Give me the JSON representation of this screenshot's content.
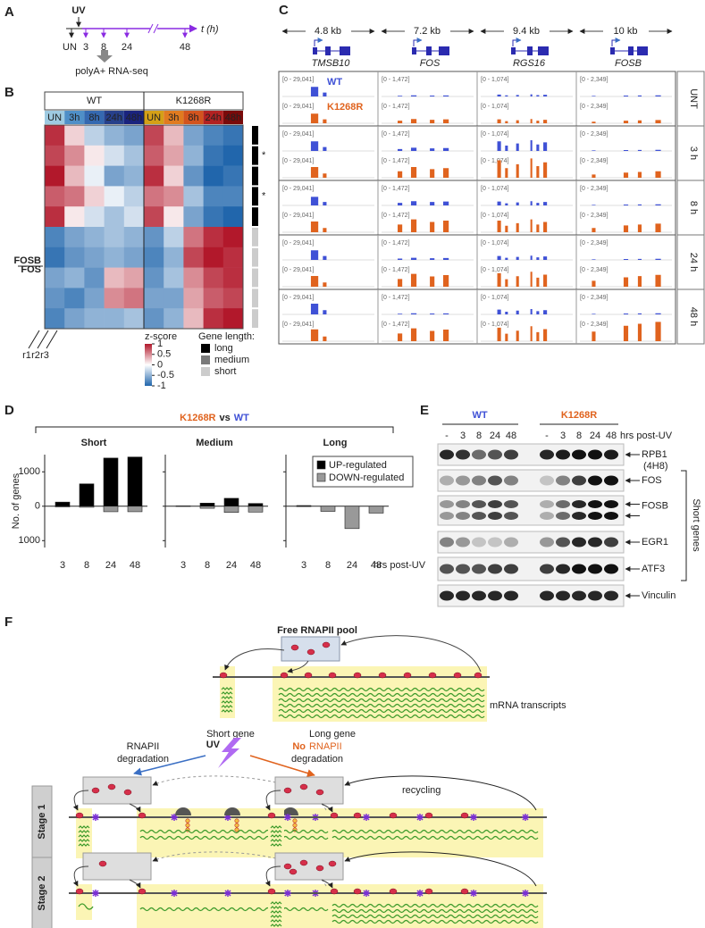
{
  "panel_labels": [
    "A",
    "B",
    "C",
    "D",
    "E",
    "F"
  ],
  "panel_a": {
    "uv": "UV",
    "untreated": "UN",
    "timepoints": [
      "3",
      "8",
      "24",
      "48"
    ],
    "axis": "t (h)",
    "assay": "polyA+ RNA-seq"
  },
  "panel_b": {
    "genotypes": [
      "WT",
      "K1268R"
    ],
    "conditions": [
      "UN",
      "3h",
      "8h",
      "24h",
      "48h"
    ],
    "heatmap": [
      [
        0.9,
        0.2,
        -0.3,
        -0.5,
        -0.6,
        0.8,
        0.3,
        -0.6,
        -0.8,
        -0.9
      ],
      [
        0.8,
        0.5,
        0.1,
        -0.2,
        -0.4,
        0.7,
        0.4,
        -0.5,
        -0.9,
        -1
      ],
      [
        1,
        0.3,
        -0.1,
        -0.6,
        -0.5,
        0.9,
        0.2,
        -0.7,
        -1,
        -0.9
      ],
      [
        0.7,
        0.6,
        0.2,
        -0.1,
        -0.3,
        0.6,
        0.5,
        -0.4,
        -0.8,
        -0.8
      ],
      [
        0.9,
        0.1,
        -0.2,
        -0.4,
        -0.2,
        0.8,
        0.1,
        -0.6,
        -0.9,
        -1
      ],
      [
        -0.8,
        -0.6,
        -0.5,
        -0.4,
        -0.5,
        -0.7,
        -0.3,
        0.6,
        0.9,
        1
      ],
      [
        -0.9,
        -0.7,
        -0.6,
        -0.5,
        -0.6,
        -0.8,
        -0.5,
        0.8,
        1,
        0.9
      ],
      [
        -0.6,
        -0.5,
        -0.7,
        0.3,
        0.4,
        -0.7,
        -0.4,
        0.5,
        0.8,
        0.9
      ],
      [
        -0.7,
        -0.8,
        -0.6,
        0.5,
        0.6,
        -0.6,
        -0.6,
        0.4,
        0.7,
        0.8
      ],
      [
        -0.8,
        -0.6,
        -0.5,
        -0.5,
        -0.4,
        -0.7,
        -0.5,
        0.3,
        0.9,
        1
      ]
    ],
    "gene_labels": [
      "FOSB",
      "FOS"
    ],
    "replicates": [
      "r1",
      "r2",
      "r3"
    ],
    "colorbar": {
      "title": "z-score",
      "lim": [
        -1,
        1
      ],
      "ticks": [
        1,
        0.5,
        0,
        -0.5,
        -1
      ]
    },
    "gene_length": {
      "title": "Gene length:",
      "classes": [
        "long",
        "medium",
        "short"
      ],
      "colors": [
        "#000000",
        "#7a7a7a",
        "#cccccc"
      ],
      "rows": [
        0,
        0,
        0,
        0,
        0,
        2,
        2,
        2,
        2,
        2
      ],
      "asterisk": "*"
    }
  },
  "panel_c": {
    "sizes": [
      "4.8 kb",
      "7.2 kb",
      "9.4 kb",
      "10 kb"
    ],
    "genes": [
      "TMSB10",
      "FOS",
      "RGS16",
      "FOSB"
    ],
    "ranges": [
      "[0 - 29,041]",
      "[0 - 1,472]",
      "[0 - 1,074]",
      "[0 - 2,349]"
    ],
    "timepoints": [
      "UNT",
      "3 h",
      "8 h",
      "24 h",
      "48 h"
    ],
    "signal": [
      [
        [
          0.45,
          0.45
        ],
        [
          0.05,
          0.2
        ],
        [
          0.1,
          0.2
        ],
        [
          0.05,
          0.15
        ]
      ],
      [
        [
          0.45,
          0.5
        ],
        [
          0.15,
          0.5
        ],
        [
          0.5,
          0.9
        ],
        [
          0.05,
          0.3
        ]
      ],
      [
        [
          0.4,
          0.5
        ],
        [
          0.2,
          0.6
        ],
        [
          0.2,
          0.6
        ],
        [
          0.05,
          0.4
        ]
      ],
      [
        [
          0.45,
          0.5
        ],
        [
          0.1,
          0.6
        ],
        [
          0.2,
          0.7
        ],
        [
          0.05,
          0.55
        ]
      ],
      [
        [
          0.5,
          0.55
        ],
        [
          0.05,
          0.6
        ],
        [
          0.25,
          0.7
        ],
        [
          0.05,
          0.9
        ]
      ]
    ]
  },
  "chart_data": {
    "type": "bar",
    "title": [
      "K1268R",
      "vs",
      "WT"
    ],
    "facets": [
      "Short",
      "Medium",
      "Long"
    ],
    "categories": [
      "3",
      "8",
      "24",
      "48"
    ],
    "x_label": "hrs post-UV",
    "y_label": "No. of genes",
    "ylim": [
      -1200,
      1500
    ],
    "yticks": [
      {
        "value": 1000,
        "label": "1000"
      },
      0,
      {
        "value": -1000,
        "label": "1000"
      }
    ],
    "legend": "upper right",
    "series": [
      {
        "name": "UP-regulated",
        "color": "#000000",
        "values": [
          [
            120,
            650,
            1400,
            1430
          ],
          [
            10,
            90,
            230,
            80
          ],
          [
            20,
            0,
            0,
            0
          ]
        ]
      },
      {
        "name": "DOWN-regulated",
        "color": "#999999",
        "values": [
          [
            -20,
            -30,
            -160,
            -160
          ],
          [
            -5,
            -60,
            -180,
            -170
          ],
          [
            -10,
            -150,
            -650,
            -200
          ]
        ]
      }
    ]
  },
  "panel_e": {
    "lanes": [
      "-",
      "3",
      "8",
      "24",
      "48"
    ],
    "proteins": [
      {
        "name": "RPB1",
        "note": "(4H8)",
        "intensity": [
          0.9,
          0.85,
          0.6,
          0.7,
          0.8,
          0.9,
          0.95,
          1,
          1,
          0.95
        ]
      },
      {
        "name": "FOS",
        "intensity": [
          0.3,
          0.4,
          0.5,
          0.7,
          0.5,
          0.2,
          0.5,
          0.8,
          1,
          1
        ]
      },
      {
        "name": "FOSB",
        "intensity": [
          0.4,
          0.5,
          0.7,
          0.8,
          0.7,
          0.3,
          0.6,
          0.9,
          1,
          1
        ]
      },
      {
        "name": "EGR1",
        "intensity": [
          0.5,
          0.4,
          0.2,
          0.2,
          0.3,
          0.4,
          0.7,
          0.9,
          0.9,
          0.8
        ]
      },
      {
        "name": "ATF3",
        "intensity": [
          0.7,
          0.7,
          0.7,
          0.8,
          0.8,
          0.8,
          0.9,
          1,
          1,
          1
        ]
      },
      {
        "name": "Vinculin",
        "intensity": [
          0.9,
          0.9,
          0.9,
          0.9,
          0.9,
          0.9,
          0.9,
          0.9,
          0.9,
          0.9
        ]
      }
    ],
    "group": "Short genes"
  },
  "panel_f": {
    "pool": "Free RNAPII pool",
    "transcripts": "mRNA transcripts",
    "short_gene": "Short gene",
    "long_gene": "Long gene",
    "uv": "UV",
    "left": [
      "RNAPII",
      "degradation"
    ],
    "right": [
      "No",
      "RNAPII",
      "degradation"
    ],
    "recycling": "recycling",
    "stages": [
      "Stage 1",
      "Stage 2"
    ]
  }
}
